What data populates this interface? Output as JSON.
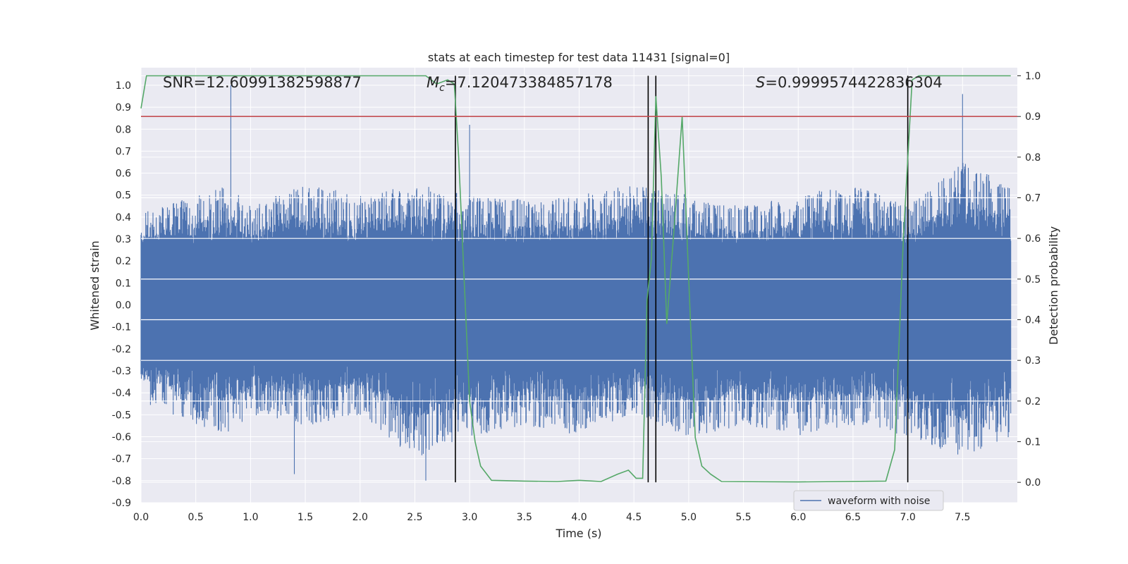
{
  "chart_data": {
    "type": "line",
    "title": "stats at each timestep for test data 11431 [signal=0]",
    "xlabel": "Time (s)",
    "ylabel_left": "Whitened strain",
    "ylabel_right": "Detection probability",
    "xlim": [
      0.0,
      8.0
    ],
    "ylim_left": [
      -0.9,
      1.08
    ],
    "ylim_right": [
      -0.05,
      1.02
    ],
    "x_ticks": [
      "0.0",
      "0.5",
      "1.0",
      "1.5",
      "2.0",
      "2.5",
      "3.0",
      "3.5",
      "4.0",
      "4.5",
      "5.0",
      "5.5",
      "6.0",
      "6.5",
      "7.0",
      "7.5"
    ],
    "y_ticks_left": [
      "-0.9",
      "-0.8",
      "-0.7",
      "-0.6",
      "-0.5",
      "-0.4",
      "-0.3",
      "-0.2",
      "-0.1",
      "0.0",
      "0.1",
      "0.2",
      "0.3",
      "0.4",
      "0.5",
      "0.6",
      "0.7",
      "0.8",
      "0.9",
      "1.0"
    ],
    "y_ticks_right": [
      "0.0",
      "0.1",
      "0.2",
      "0.3",
      "0.4",
      "0.5",
      "0.6",
      "0.7",
      "0.8",
      "0.9",
      "1.0"
    ],
    "grid": true,
    "legend_position": "bottom-right",
    "annotations": {
      "snr": "SNR=12.60991382598877",
      "mc_symbol": "M",
      "mc_sub": "c",
      "mc_value": "=7.120473384857178",
      "s_symbol": "S",
      "s_value": "=0.9999574422836304"
    },
    "series": [
      {
        "name": "waveform with noise",
        "axis": "left",
        "color": "#4c72b0",
        "kind": "noise",
        "envelope": {
          "x": [
            0.0,
            0.8,
            1.0,
            1.5,
            2.0,
            2.5,
            3.0,
            3.5,
            4.0,
            4.5,
            5.0,
            5.5,
            6.0,
            6.5,
            7.0,
            7.5,
            7.94
          ],
          "upper": [
            0.42,
            0.55,
            0.45,
            0.55,
            0.5,
            0.55,
            0.5,
            0.48,
            0.5,
            0.55,
            0.5,
            0.45,
            0.5,
            0.55,
            0.45,
            0.65,
            0.55
          ],
          "lower": [
            -0.45,
            -0.6,
            -0.5,
            -0.55,
            -0.5,
            -0.7,
            -0.6,
            -0.55,
            -0.6,
            -0.5,
            -0.6,
            -0.55,
            -0.6,
            -0.55,
            -0.6,
            -0.7,
            -0.6
          ]
        },
        "spikes": [
          [
            0.82,
            1.0
          ],
          [
            2.6,
            -0.8
          ],
          [
            1.4,
            -0.77
          ],
          [
            7.5,
            0.96
          ],
          [
            3.0,
            0.82
          ]
        ]
      },
      {
        "axis": "right",
        "color": "#55a868",
        "x": [
          0.0,
          0.05,
          0.2,
          2.6,
          2.7,
          2.8,
          2.86,
          2.9,
          3.0,
          3.05,
          3.1,
          3.2,
          3.5,
          3.8,
          4.0,
          4.2,
          4.35,
          4.45,
          4.52,
          4.58,
          4.62,
          4.66,
          4.7,
          4.75,
          4.8,
          4.86,
          4.94,
          5.0,
          5.06,
          5.12,
          5.2,
          5.3,
          6.0,
          6.8,
          6.88,
          6.96,
          7.04,
          7.1,
          7.2,
          7.94
        ],
        "y": [
          0.92,
          1.0,
          1.0,
          1.0,
          0.98,
          0.99,
          0.98,
          0.8,
          0.2,
          0.1,
          0.04,
          0.005,
          0.003,
          0.002,
          0.005,
          0.002,
          0.02,
          0.03,
          0.01,
          0.01,
          0.45,
          0.55,
          0.95,
          0.75,
          0.39,
          0.6,
          0.9,
          0.5,
          0.11,
          0.04,
          0.02,
          0.002,
          0.001,
          0.003,
          0.08,
          0.6,
          0.99,
          1.0,
          1.0,
          1.0
        ]
      },
      {
        "axis": "right",
        "color": "#c44e52",
        "kind": "hline",
        "y": 0.9
      }
    ],
    "vlines": [
      2.87,
      4.63,
      4.7,
      7.0
    ]
  }
}
